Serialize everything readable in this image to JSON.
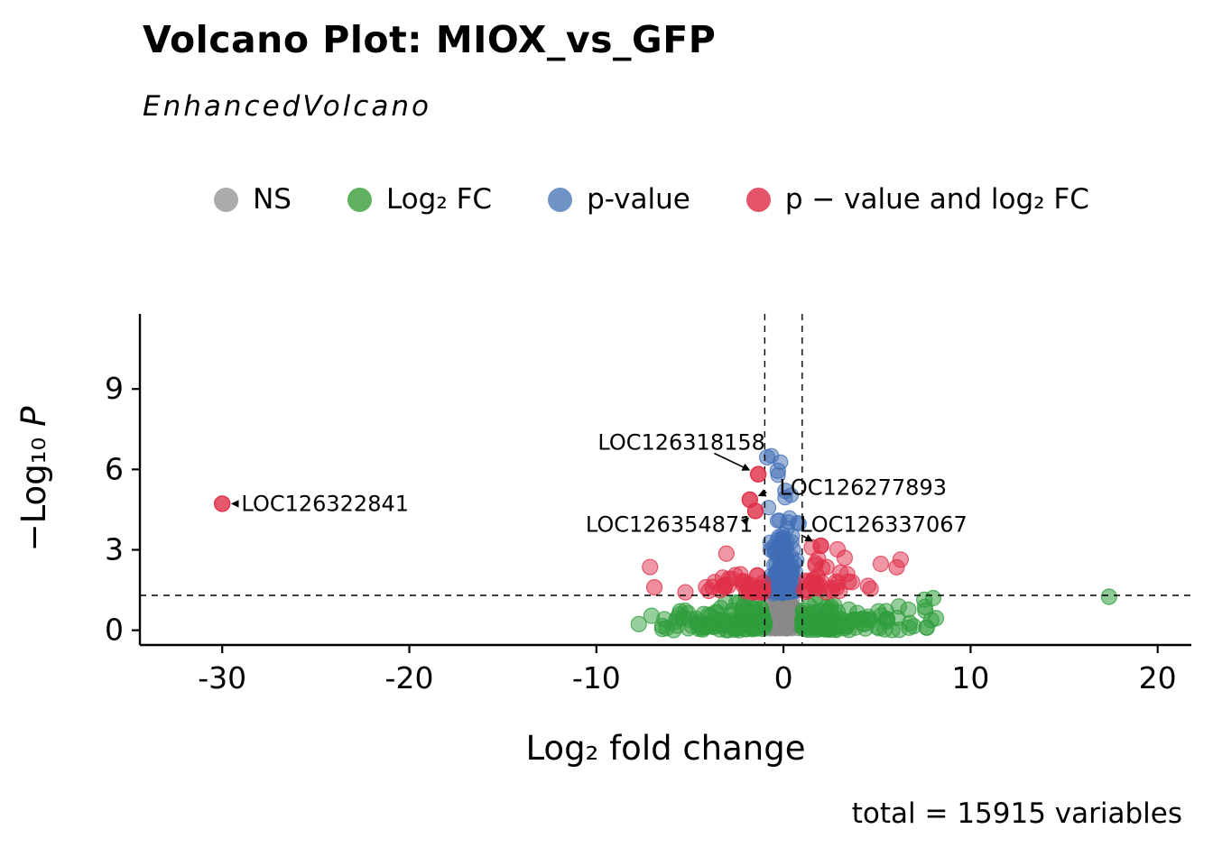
{
  "chart_data": {
    "type": "scatter",
    "title": "Volcano Plot: MIOX_vs_GFP",
    "subtitle": "EnhancedVolcano",
    "caption": "total = 15915 variables",
    "xlabel": "Log₂ fold change",
    "ylabel_prefix": "−Log₁₀ ",
    "ylabel_italic": "P",
    "x_domain": [
      -34.4,
      21.8
    ],
    "y_domain": [
      -0.55,
      11.8
    ],
    "x_ticks": [
      -30,
      -20,
      -10,
      0,
      10,
      20
    ],
    "x_tick_labels": [
      "-30",
      "-20",
      "-10",
      "0",
      "10",
      "20"
    ],
    "y_ticks": [
      0,
      3,
      6,
      9
    ],
    "y_tick_labels": [
      "0",
      "3",
      "6",
      "9"
    ],
    "threshold_vlines": [
      -1,
      1
    ],
    "threshold_hline": 1.301,
    "legend": {
      "items": [
        {
          "label": "NS",
          "color": "#ababab"
        },
        {
          "label": "Log₂ FC",
          "color": "#5fb05f"
        },
        {
          "label": "p-value",
          "color": "#6f93c5"
        },
        {
          "label": "p − value and log₂ FC",
          "color": "#e4556a"
        }
      ]
    },
    "point_colors": {
      "gray": "#8a8a8a",
      "green": "#2f9e3c",
      "blue": "#3f6db5",
      "red": "#e03049"
    },
    "labeled_points": [
      {
        "label": "LOC126322841",
        "x": -30,
        "y": 4.72,
        "tx": -24.5,
        "ty": 4.72,
        "ax": -29.2,
        "ay": 4.72,
        "color": "red"
      },
      {
        "label": "LOC126318158",
        "x": -1.35,
        "y": 5.82,
        "tx": -5.45,
        "ty": 7.0,
        "ax": -3.7,
        "ay": 6.6,
        "color": "red"
      },
      {
        "label": "LOC126277893",
        "x": -1.8,
        "y": 4.87,
        "tx": 4.25,
        "ty": 5.33,
        "ax": -0.9,
        "ay": 5.15,
        "color": "red"
      },
      {
        "label": "LOC126354871",
        "x": -1.5,
        "y": 4.45,
        "tx": -6.1,
        "ty": 3.95,
        "ax": -2.0,
        "ay": 4.1,
        "color": "red"
      },
      {
        "label": "LOC126337067",
        "x": 2.0,
        "y": 3.15,
        "tx": 5.35,
        "ty": 3.95,
        "ax": 0.95,
        "ay": 3.55,
        "color": "red"
      }
    ],
    "extra_points": [
      {
        "x": 17.4,
        "y": 1.25,
        "color": "green"
      },
      {
        "x": 8.15,
        "y": 0.45,
        "color": "green"
      },
      {
        "x": 8.0,
        "y": 1.2,
        "color": "green"
      },
      {
        "x": -6.9,
        "y": 1.6,
        "color": "red"
      },
      {
        "x": 6.05,
        "y": 2.35,
        "color": "red"
      },
      {
        "x": -0.87,
        "y": 6.45,
        "color": "blue"
      },
      {
        "x": -0.3,
        "y": 5.95,
        "color": "blue"
      },
      {
        "x": 0.1,
        "y": 5.2,
        "color": "blue"
      }
    ],
    "clusters": [
      {
        "name": "ns",
        "color": "gray",
        "n": 450,
        "r": 6.5,
        "x": {
          "dist": "norm",
          "mu": 0,
          "sd": 0.42,
          "clip": [
            -0.99,
            0.99
          ]
        },
        "y": {
          "dist": "halfnorm",
          "sd": 0.5,
          "clip": [
            0,
            1.25
          ]
        }
      },
      {
        "name": "log2fc-only",
        "color": "green",
        "n": 260,
        "r": 8.5,
        "x": {
          "dist": "signed-exp",
          "offset": 1.0,
          "rate": 0.45,
          "pneg": 0.5,
          "clip": [
            -8.5,
            8.5
          ]
        },
        "y": {
          "dist": "halfnorm",
          "sd": 0.45,
          "clip": [
            0,
            1.25
          ]
        }
      },
      {
        "name": "pvalue-only",
        "color": "blue",
        "n": 140,
        "r": 8,
        "x": {
          "dist": "norm",
          "mu": 0,
          "sd": 0.38,
          "clip": [
            -0.99,
            0.99
          ]
        },
        "y": {
          "dist": "exp-shift",
          "offset": 1.35,
          "rate": 1.1,
          "clip": [
            1.35,
            6.6
          ]
        }
      },
      {
        "name": "both",
        "color": "red",
        "n": 80,
        "r": 8.5,
        "x": {
          "dist": "signed-exp",
          "offset": 1.05,
          "rate": 0.55,
          "pneg": 0.55,
          "clip": [
            -7.2,
            6.5
          ]
        },
        "y": {
          "dist": "exp-shift",
          "offset": 1.4,
          "rate": 1.6,
          "clip": [
            1.4,
            3.1
          ]
        }
      }
    ]
  }
}
